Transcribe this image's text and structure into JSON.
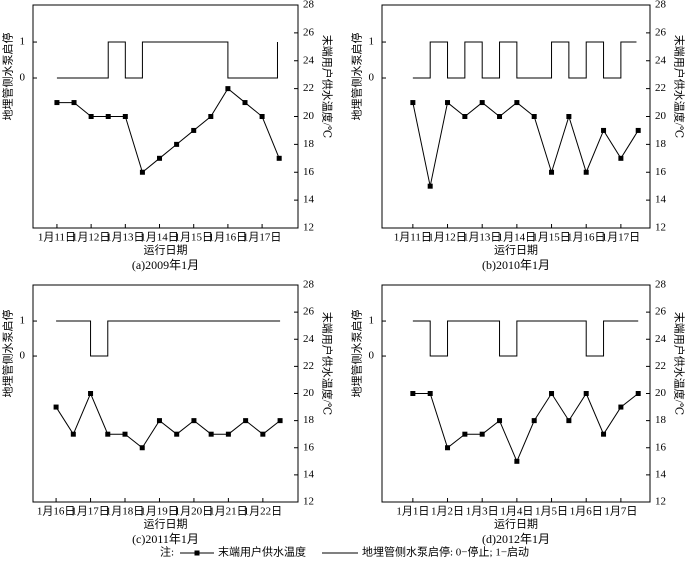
{
  "chart_data": [
    {
      "type": "line",
      "title": "(a)2009年1月",
      "xlabel": "运行日期",
      "ylabel": "地埋管侧水泵启停",
      "y2label": "末端用户供水温度/℃",
      "xlim": [
        10.3,
        18.05
      ],
      "xticks": [
        {
          "value": 11,
          "label": "1月11日"
        },
        {
          "value": 12,
          "label": "1月12日"
        },
        {
          "value": 13,
          "label": "1月13日"
        },
        {
          "value": 14,
          "label": "1月14日"
        },
        {
          "value": 15,
          "label": "1月15日"
        },
        {
          "value": 16,
          "label": "1月16日"
        },
        {
          "value": 17,
          "label": "1月17日"
        }
      ],
      "ylim": [
        -4.17,
        2.03
      ],
      "yticks": [
        0,
        1
      ],
      "y2lim": [
        12,
        28
      ],
      "y2ticks": [
        12,
        14,
        16,
        18,
        20,
        22,
        24,
        26,
        28
      ],
      "series": [
        {
          "name": "末端用户供水温度",
          "color": "#000000",
          "axis": "y2",
          "marker": "square",
          "x": [
            11,
            11.5,
            12,
            12.5,
            13,
            13.5,
            14,
            14.5,
            15,
            15.5,
            16,
            16.5,
            17,
            17.5
          ],
          "values": [
            21,
            21,
            20,
            20,
            20,
            16,
            17,
            18,
            19,
            20,
            22,
            21,
            20,
            17
          ]
        },
        {
          "name": "地埋管侧水泵启停: 0−停止; 1−启动",
          "color": "#000000",
          "x": [
            11,
            12.5,
            12.5,
            13,
            13,
            13.5,
            13.5,
            16,
            16,
            17.45,
            17.45
          ],
          "values": [
            0,
            0,
            1,
            1,
            0,
            0,
            1,
            1,
            0,
            0,
            1
          ]
        }
      ]
    },
    {
      "type": "line",
      "title": "(b)2010年1月",
      "xlabel": "运行日期",
      "ylabel": "地埋管侧水泵启停",
      "y2label": "末端用户供水温度/℃",
      "xlim": [
        10.11,
        17.84
      ],
      "xticks": [
        {
          "value": 11,
          "label": "1月11日"
        },
        {
          "value": 12,
          "label": "1月12日"
        },
        {
          "value": 13,
          "label": "1月13日"
        },
        {
          "value": 14,
          "label": "1月14日"
        },
        {
          "value": 15,
          "label": "1月15日"
        },
        {
          "value": 16,
          "label": "1月16日"
        },
        {
          "value": 17,
          "label": "1月17日"
        }
      ],
      "ylim": [
        -4.17,
        2.03
      ],
      "yticks": [
        0,
        1
      ],
      "y2lim": [
        12,
        28
      ],
      "y2ticks": [
        12,
        14,
        16,
        18,
        20,
        22,
        24,
        26,
        28
      ],
      "series": [
        {
          "name": "末端用户供水温度",
          "color": "#000000",
          "axis": "y2",
          "marker": "square",
          "x": [
            11,
            11.5,
            12,
            12.5,
            13,
            13.5,
            14,
            14.5,
            15,
            15.5,
            16,
            16.5,
            17,
            17.5
          ],
          "values": [
            21,
            15,
            21,
            20,
            21,
            20,
            21,
            20,
            16,
            20,
            16,
            19,
            17,
            19
          ]
        },
        {
          "name": "地埋管侧水泵启停: 0−停止; 1−启动",
          "color": "#000000",
          "x": [
            11,
            11.5,
            11.5,
            12,
            12,
            12.5,
            12.5,
            13,
            13,
            13.5,
            13.5,
            14,
            14,
            15,
            15,
            15.5,
            15.5,
            16,
            16,
            16.5,
            16.5,
            17,
            17,
            17.45
          ],
          "values": [
            0,
            0,
            1,
            1,
            0,
            0,
            1,
            1,
            0,
            0,
            1,
            1,
            0,
            0,
            1,
            1,
            0,
            0,
            1,
            1,
            0,
            0,
            1,
            1
          ]
        }
      ]
    },
    {
      "type": "line",
      "title": "(c)2011年1月",
      "xlabel": "运行日期",
      "ylabel": "地埋管侧水泵启停",
      "y2label": "末端用户供水温度/℃",
      "xlim": [
        15.33,
        23.02
      ],
      "xticks": [
        {
          "value": 16,
          "label": "1月16日"
        },
        {
          "value": 17,
          "label": "1月17日"
        },
        {
          "value": 18,
          "label": "1月18日"
        },
        {
          "value": 19,
          "label": "1月19日"
        },
        {
          "value": 20,
          "label": "1月20日"
        },
        {
          "value": 21,
          "label": "1月21日"
        },
        {
          "value": 22,
          "label": "1月22日"
        }
      ],
      "ylim": [
        -4.17,
        2.03
      ],
      "yticks": [
        0,
        1
      ],
      "y2lim": [
        12,
        28
      ],
      "y2ticks": [
        12,
        14,
        16,
        18,
        20,
        22,
        24,
        26,
        28
      ],
      "series": [
        {
          "name": "末端用户供水温度",
          "color": "#000000",
          "axis": "y2",
          "marker": "square",
          "x": [
            16,
            16.5,
            17,
            17.5,
            18,
            18.5,
            19,
            19.5,
            20,
            20.5,
            21,
            21.5,
            22,
            22.5
          ],
          "values": [
            19,
            17,
            20,
            17,
            17,
            16,
            18,
            17,
            18,
            17,
            17,
            18,
            17,
            18
          ]
        },
        {
          "name": "地埋管侧水泵启停: 0−停止; 1−启动",
          "color": "#000000",
          "x": [
            16,
            17,
            17,
            17.5,
            17.5,
            22.5
          ],
          "values": [
            1,
            1,
            0,
            0,
            1,
            1
          ]
        }
      ]
    },
    {
      "type": "line",
      "title": "(d)2012年1月",
      "xlabel": "运行日期",
      "ylabel": "地埋管侧水泵启停",
      "y2label": "末端用户供水温度/℃",
      "xlim": [
        0.11,
        7.84
      ],
      "xticks": [
        {
          "value": 1,
          "label": "1月1日"
        },
        {
          "value": 2,
          "label": "1月2日"
        },
        {
          "value": 3,
          "label": "1月3日"
        },
        {
          "value": 4,
          "label": "1月4日"
        },
        {
          "value": 5,
          "label": "1月5日"
        },
        {
          "value": 6,
          "label": "1月6日"
        },
        {
          "value": 7,
          "label": "1月7日"
        }
      ],
      "ylim": [
        -4.17,
        2.03
      ],
      "yticks": [
        0,
        1
      ],
      "y2lim": [
        12,
        28
      ],
      "y2ticks": [
        12,
        14,
        16,
        18,
        20,
        22,
        24,
        26,
        28
      ],
      "series": [
        {
          "name": "末端用户供水温度",
          "color": "#000000",
          "axis": "y2",
          "marker": "square",
          "x": [
            1,
            1.5,
            2,
            2.5,
            3,
            3.5,
            4,
            4.5,
            5,
            5.5,
            6,
            6.5,
            7,
            7.5
          ],
          "values": [
            20,
            20,
            16,
            17,
            17,
            18,
            15,
            18,
            20,
            18,
            20,
            17,
            19,
            20
          ]
        },
        {
          "name": "地埋管侧水泵启停: 0−停止; 1−启动",
          "color": "#000000",
          "x": [
            1,
            1.5,
            1.5,
            2,
            2,
            3.5,
            3.5,
            4,
            4,
            6,
            6,
            6.5,
            6.5,
            7.5
          ],
          "values": [
            1,
            1,
            0,
            0,
            1,
            1,
            0,
            0,
            1,
            1,
            0,
            0,
            1,
            1
          ]
        }
      ]
    }
  ],
  "legend_note": "注:"
}
